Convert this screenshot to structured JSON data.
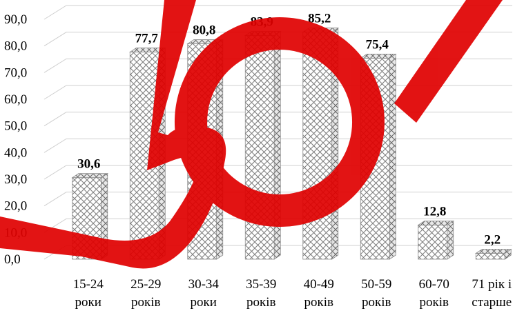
{
  "chart_data": {
    "type": "bar",
    "title": "",
    "xlabel": "",
    "ylabel": "",
    "ylim": [
      0,
      90
    ],
    "yticks": [
      "0,0",
      "10,0",
      "20,0",
      "30,0",
      "40,0",
      "50,0",
      "60,0",
      "70,0",
      "80,0",
      "90,0"
    ],
    "categories": [
      [
        "15-24",
        "роки"
      ],
      [
        "25-29",
        "років"
      ],
      [
        "30-34",
        "роки"
      ],
      [
        "35-39",
        "років"
      ],
      [
        "40-49",
        "років"
      ],
      [
        "50-59",
        "років"
      ],
      [
        "60-70",
        "років"
      ],
      [
        "71 рік і",
        "старше"
      ]
    ],
    "values": [
      30.6,
      77.7,
      80.8,
      83.9,
      85.2,
      75.4,
      12.8,
      2.2
    ],
    "value_labels": [
      "30,6",
      "77,7",
      "80,8",
      "83,9",
      "85,2",
      "75,4",
      "12,8",
      "2,2"
    ],
    "grid": true,
    "bar_style": "3d crosshatch pattern",
    "colors": {
      "hatch": "#7f7f7f",
      "grid": "#cfcfcf",
      "watermark": "#e00000"
    }
  },
  "watermark": {
    "type": "stamp-shapes",
    "shapes": [
      "letter-B",
      "ring"
    ]
  }
}
